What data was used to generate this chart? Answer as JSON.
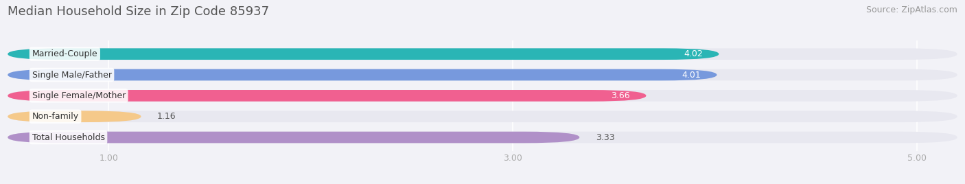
{
  "title": "Median Household Size in Zip Code 85937",
  "source": "Source: ZipAtlas.com",
  "categories": [
    "Married-Couple",
    "Single Male/Father",
    "Single Female/Mother",
    "Non-family",
    "Total Households"
  ],
  "values": [
    4.02,
    4.01,
    3.66,
    1.16,
    3.33
  ],
  "bar_colors": [
    "#2ab5b5",
    "#7799dd",
    "#f06090",
    "#f5c98a",
    "#b090c8"
  ],
  "value_colors": [
    "white",
    "white",
    "#444444",
    "#444444",
    "#444444"
  ],
  "xlim_start": 0.5,
  "xlim_end": 5.2,
  "xticks": [
    1.0,
    3.0,
    5.0
  ],
  "xtick_labels": [
    "1.00",
    "3.00",
    "5.00"
  ],
  "background_color": "#f2f2f7",
  "bar_bg_color": "#e8e8f0",
  "title_fontsize": 13,
  "source_fontsize": 9,
  "label_fontsize": 9,
  "value_fontsize": 9,
  "bar_height": 0.55
}
